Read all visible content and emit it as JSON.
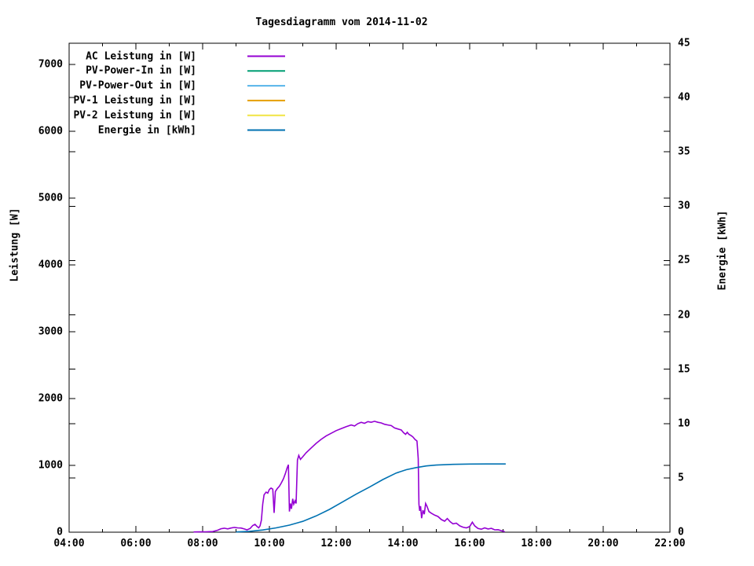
{
  "title": "Tagesdiagramm vom 2014-11-02",
  "colors": {
    "background": "#ffffff",
    "axis": "#000000",
    "ac_leistung": "#9400d3",
    "pv_power_in": "#009e73",
    "pv_power_out": "#56b4e9",
    "pv1_leistung": "#e69f00",
    "pv2_leistung": "#f0e442",
    "energie": "#0072b2"
  },
  "chart_data": {
    "type": "line",
    "title": "Tagesdiagramm vom 2014-11-02",
    "grid": false,
    "legend_position": "top-left-inside",
    "x_axis": {
      "unit": "time",
      "range_hours": [
        4,
        22
      ],
      "major_tick_hours": [
        4,
        6,
        8,
        10,
        12,
        14,
        16,
        18,
        20,
        22
      ],
      "major_tick_labels": [
        "04:00",
        "06:00",
        "08:00",
        "10:00",
        "12:00",
        "14:00",
        "16:00",
        "18:00",
        "20:00",
        "22:00"
      ],
      "minor_tick_hours": [
        5,
        7,
        9,
        11,
        13,
        15,
        17,
        19,
        21
      ]
    },
    "y_left": {
      "label": "Leistung [W]",
      "ticks": [
        0,
        1000,
        2000,
        3000,
        4000,
        5000,
        6000,
        7000
      ],
      "range": [
        0,
        7318
      ]
    },
    "y_right": {
      "label": "Energie [kWh]",
      "ticks": [
        0,
        5,
        10,
        15,
        20,
        25,
        30,
        35,
        40,
        45
      ],
      "range": [
        0,
        45
      ]
    },
    "legend": [
      {
        "label": "AC Leistung in [W]",
        "color": "#9400d3",
        "key": "ac-leistung"
      },
      {
        "label": "PV-Power-In in [W]",
        "color": "#009e73",
        "key": "pv-power-in"
      },
      {
        "label": "PV-Power-Out in [W]",
        "color": "#56b4e9",
        "key": "pv-power-out"
      },
      {
        "label": "PV-1 Leistung in [W]",
        "color": "#e69f00",
        "key": "pv-1-leistung"
      },
      {
        "label": "PV-2 Leistung in [W]",
        "color": "#f0e442",
        "key": "pv-2-leistung"
      },
      {
        "label": "Energie in [kWh]",
        "color": "#0072b2",
        "key": "energie"
      }
    ],
    "series": [
      {
        "name": "AC Leistung in [W]",
        "key": "ac-leistung",
        "color": "#9400d3",
        "axis": "left",
        "points": [
          [
            7.73,
            4
          ],
          [
            7.9,
            5
          ],
          [
            8.1,
            6
          ],
          [
            8.3,
            10
          ],
          [
            8.45,
            30
          ],
          [
            8.55,
            52
          ],
          [
            8.65,
            60
          ],
          [
            8.75,
            50
          ],
          [
            8.85,
            62
          ],
          [
            8.95,
            72
          ],
          [
            9.05,
            65
          ],
          [
            9.15,
            62
          ],
          [
            9.25,
            48
          ],
          [
            9.33,
            35
          ],
          [
            9.42,
            55
          ],
          [
            9.5,
            100
          ],
          [
            9.57,
            118
          ],
          [
            9.63,
            85
          ],
          [
            9.68,
            65
          ],
          [
            9.72,
            95
          ],
          [
            9.76,
            180
          ],
          [
            9.8,
            420
          ],
          [
            9.84,
            560
          ],
          [
            9.9,
            600
          ],
          [
            9.95,
            585
          ],
          [
            10.0,
            640
          ],
          [
            10.05,
            660
          ],
          [
            10.1,
            645
          ],
          [
            10.14,
            290
          ],
          [
            10.18,
            610
          ],
          [
            10.24,
            655
          ],
          [
            10.3,
            690
          ],
          [
            10.36,
            740
          ],
          [
            10.42,
            800
          ],
          [
            10.48,
            880
          ],
          [
            10.53,
            960
          ],
          [
            10.57,
            1010
          ],
          [
            10.6,
            310
          ],
          [
            10.63,
            430
          ],
          [
            10.66,
            350
          ],
          [
            10.7,
            500
          ],
          [
            10.73,
            420
          ],
          [
            10.77,
            470
          ],
          [
            10.8,
            430
          ],
          [
            10.84,
            1080
          ],
          [
            10.88,
            1150
          ],
          [
            10.93,
            1090
          ],
          [
            11.0,
            1130
          ],
          [
            11.1,
            1190
          ],
          [
            11.25,
            1260
          ],
          [
            11.4,
            1330
          ],
          [
            11.55,
            1390
          ],
          [
            11.7,
            1440
          ],
          [
            11.85,
            1480
          ],
          [
            12.0,
            1520
          ],
          [
            12.15,
            1550
          ],
          [
            12.3,
            1580
          ],
          [
            12.45,
            1605
          ],
          [
            12.55,
            1590
          ],
          [
            12.65,
            1625
          ],
          [
            12.75,
            1645
          ],
          [
            12.85,
            1630
          ],
          [
            12.95,
            1655
          ],
          [
            13.05,
            1645
          ],
          [
            13.15,
            1660
          ],
          [
            13.25,
            1645
          ],
          [
            13.35,
            1635
          ],
          [
            13.45,
            1615
          ],
          [
            13.55,
            1605
          ],
          [
            13.65,
            1595
          ],
          [
            13.75,
            1560
          ],
          [
            13.85,
            1545
          ],
          [
            13.95,
            1530
          ],
          [
            14.02,
            1490
          ],
          [
            14.08,
            1465
          ],
          [
            14.13,
            1495
          ],
          [
            14.18,
            1465
          ],
          [
            14.25,
            1445
          ],
          [
            14.3,
            1425
          ],
          [
            14.36,
            1390
          ],
          [
            14.42,
            1365
          ],
          [
            14.46,
            1100
          ],
          [
            14.48,
            420
          ],
          [
            14.5,
            320
          ],
          [
            14.53,
            390
          ],
          [
            14.56,
            210
          ],
          [
            14.6,
            330
          ],
          [
            14.64,
            270
          ],
          [
            14.68,
            430
          ],
          [
            14.72,
            390
          ],
          [
            14.78,
            310
          ],
          [
            14.85,
            285
          ],
          [
            14.95,
            255
          ],
          [
            15.05,
            235
          ],
          [
            15.15,
            190
          ],
          [
            15.25,
            165
          ],
          [
            15.33,
            205
          ],
          [
            15.42,
            155
          ],
          [
            15.5,
            125
          ],
          [
            15.6,
            135
          ],
          [
            15.7,
            95
          ],
          [
            15.8,
            75
          ],
          [
            15.9,
            65
          ],
          [
            16.0,
            85
          ],
          [
            16.08,
            150
          ],
          [
            16.15,
            95
          ],
          [
            16.25,
            55
          ],
          [
            16.35,
            45
          ],
          [
            16.45,
            65
          ],
          [
            16.55,
            48
          ],
          [
            16.65,
            58
          ],
          [
            16.75,
            35
          ],
          [
            16.85,
            38
          ],
          [
            16.95,
            22
          ],
          [
            17.05,
            8
          ]
        ]
      },
      {
        "name": "PV-Power-In in [W]",
        "key": "pv-power-in",
        "color": "#009e73",
        "axis": "left",
        "points": []
      },
      {
        "name": "PV-Power-Out in [W]",
        "key": "pv-power-out",
        "color": "#56b4e9",
        "axis": "left",
        "points": []
      },
      {
        "name": "PV-1 Leistung in [W]",
        "key": "pv-1-leistung",
        "color": "#e69f00",
        "axis": "left",
        "points": []
      },
      {
        "name": "PV-2 Leistung in [W]",
        "key": "pv-2-leistung",
        "color": "#f0e442",
        "axis": "left",
        "points": []
      },
      {
        "name": "Energie in [kWh]",
        "key": "energie",
        "color": "#0072b2",
        "axis": "right",
        "points": [
          [
            9.0,
            0.02
          ],
          [
            9.4,
            0.08
          ],
          [
            9.8,
            0.2
          ],
          [
            10.2,
            0.4
          ],
          [
            10.6,
            0.65
          ],
          [
            11.0,
            1.0
          ],
          [
            11.4,
            1.5
          ],
          [
            11.8,
            2.1
          ],
          [
            12.2,
            2.8
          ],
          [
            12.6,
            3.5
          ],
          [
            13.0,
            4.15
          ],
          [
            13.4,
            4.85
          ],
          [
            13.8,
            5.45
          ],
          [
            14.1,
            5.75
          ],
          [
            14.4,
            5.95
          ],
          [
            14.7,
            6.1
          ],
          [
            15.0,
            6.18
          ],
          [
            15.5,
            6.24
          ],
          [
            16.0,
            6.27
          ],
          [
            16.5,
            6.28
          ],
          [
            17.08,
            6.28
          ]
        ]
      }
    ]
  }
}
